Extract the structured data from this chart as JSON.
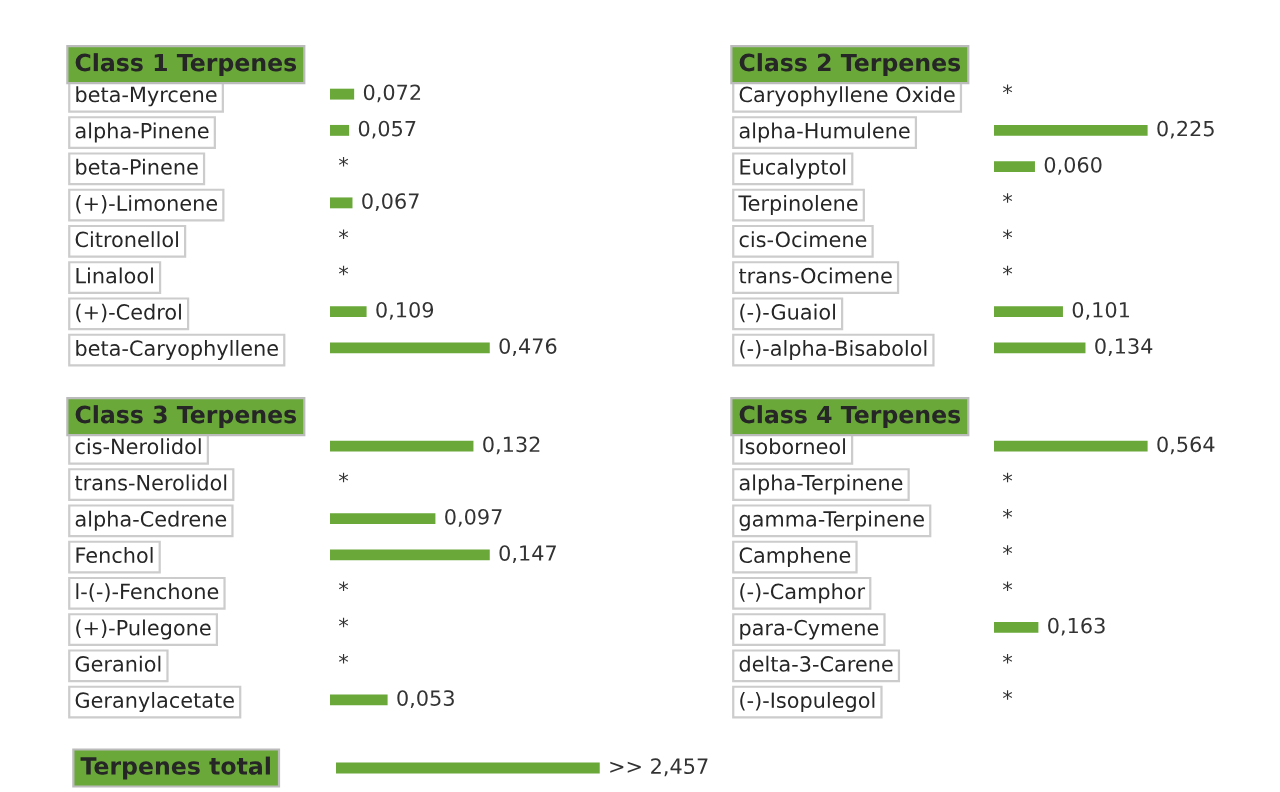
{
  "chart_data": [
    {
      "type": "bar",
      "orientation": "horizontal",
      "title": "Class 1 Terpenes",
      "color": "#6aa83a",
      "categories": [
        "beta-Myrcene",
        "alpha-Pinene",
        "beta-Pinene",
        "(+)-Limonene",
        "Citronellol",
        "Linalool",
        "(+)-Cedrol",
        "beta-Caryophyllene"
      ],
      "values": [
        0.072,
        0.057,
        null,
        0.067,
        null,
        null,
        0.109,
        0.476
      ],
      "value_labels": [
        "0,072",
        "0,057",
        "*",
        "0,067",
        "*",
        "*",
        "0,109",
        "0,476"
      ]
    },
    {
      "type": "bar",
      "orientation": "horizontal",
      "title": "Class 2 Terpenes",
      "color": "#6aa83a",
      "categories": [
        "Caryophyllene Oxide",
        "alpha-Humulene",
        "Eucalyptol",
        "Terpinolene",
        "cis-Ocimene",
        "trans-Ocimene",
        "(-)-Guaiol",
        "(-)-alpha-Bisabolol"
      ],
      "values": [
        null,
        0.225,
        0.06,
        null,
        null,
        null,
        0.101,
        0.134
      ],
      "value_labels": [
        "*",
        "0,225",
        "0,060",
        "*",
        "*",
        "*",
        "0,101",
        "0,134"
      ]
    },
    {
      "type": "bar",
      "orientation": "horizontal",
      "title": "Class 3 Terpenes",
      "color": "#6aa83a",
      "categories": [
        "cis-Nerolidol",
        "trans-Nerolidol",
        "alpha-Cedrene",
        "Fenchol",
        "l-(-)-Fenchone",
        "(+)-Pulegone",
        "Geraniol",
        "Geranylacetate"
      ],
      "values": [
        0.132,
        null,
        0.097,
        0.147,
        null,
        null,
        null,
        0.053
      ],
      "value_labels": [
        "0,132",
        "*",
        "0,097",
        "0,147",
        "*",
        "*",
        "*",
        "0,053"
      ]
    },
    {
      "type": "bar",
      "orientation": "horizontal",
      "title": "Class 4 Terpenes",
      "color": "#6aa83a",
      "categories": [
        "Isoborneol",
        "alpha-Terpinene",
        "gamma-Terpinene",
        "Camphene",
        "(-)-Camphor",
        "para-Cymene",
        "delta-3-Carene",
        "(-)-Isopulegol"
      ],
      "values": [
        0.564,
        null,
        null,
        null,
        null,
        0.163,
        null,
        null
      ],
      "value_labels": [
        "0,564",
        "*",
        "*",
        "*",
        "*",
        "0,163",
        "*",
        "*"
      ]
    },
    {
      "type": "bar",
      "orientation": "horizontal",
      "title": "Terpenes total",
      "color": "#6aa83a",
      "categories": [
        null
      ],
      "values": [
        2.457
      ],
      "value_labels": [
        ">> 2,457"
      ]
    }
  ]
}
